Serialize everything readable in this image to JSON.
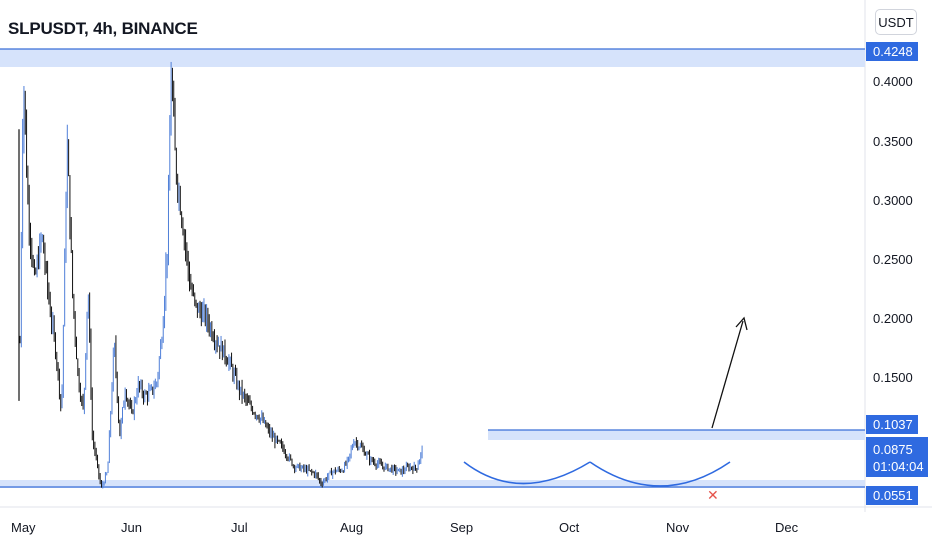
{
  "chart_data": {
    "type": "candlestick",
    "title": "SLPUSDT, 4h, BINANCE",
    "price_unit": "USDT",
    "x_ticks": [
      "May",
      "Jun",
      "Jul",
      "Aug",
      "Sep",
      "Oct",
      "Nov",
      "Dec"
    ],
    "y_ticks": [
      "0.4000",
      "0.3500",
      "0.3000",
      "0.2500",
      "0.2000",
      "0.1500"
    ],
    "ylim": [
      0.05,
      0.43
    ],
    "price_labels": {
      "top_level": "0.4248",
      "resistance": "0.1037",
      "current": "0.0875",
      "countdown": "01:04:04",
      "support": "0.0551"
    },
    "levels": {
      "top": 0.4248,
      "resistance": 0.1037,
      "support": 0.0551
    },
    "price_path": [
      [
        0.0,
        0.18
      ],
      [
        0.03,
        0.41
      ],
      [
        0.07,
        0.3
      ],
      [
        0.13,
        0.23
      ],
      [
        0.2,
        0.27
      ],
      [
        0.27,
        0.21
      ],
      [
        0.33,
        0.17
      ],
      [
        0.38,
        0.12
      ],
      [
        0.43,
        0.35
      ],
      [
        0.48,
        0.22
      ],
      [
        0.53,
        0.15
      ],
      [
        0.58,
        0.12
      ],
      [
        0.62,
        0.23
      ],
      [
        0.66,
        0.1
      ],
      [
        0.7,
        0.078
      ],
      [
        0.74,
        0.056
      ],
      [
        0.8,
        0.07
      ],
      [
        0.86,
        0.18
      ],
      [
        0.91,
        0.1
      ],
      [
        0.96,
        0.14
      ],
      [
        1.02,
        0.118
      ],
      [
        1.08,
        0.143
      ],
      [
        1.14,
        0.134
      ],
      [
        1.2,
        0.138
      ],
      [
        1.25,
        0.146
      ],
      [
        1.3,
        0.19
      ],
      [
        1.35,
        0.27
      ],
      [
        1.38,
        0.41
      ],
      [
        1.42,
        0.33
      ],
      [
        1.46,
        0.3
      ],
      [
        1.5,
        0.27
      ],
      [
        1.55,
        0.23
      ],
      [
        1.6,
        0.21
      ],
      [
        1.7,
        0.2
      ],
      [
        1.8,
        0.18
      ],
      [
        1.9,
        0.165
      ],
      [
        2.0,
        0.14
      ],
      [
        2.1,
        0.125
      ],
      [
        2.2,
        0.115
      ],
      [
        2.3,
        0.1
      ],
      [
        2.4,
        0.09
      ],
      [
        2.5,
        0.075
      ],
      [
        2.6,
        0.072
      ],
      [
        2.7,
        0.068
      ],
      [
        2.75,
        0.06
      ],
      [
        2.85,
        0.07
      ],
      [
        2.95,
        0.072
      ],
      [
        3.0,
        0.08
      ],
      [
        3.05,
        0.097
      ],
      [
        3.12,
        0.09
      ],
      [
        3.2,
        0.08
      ],
      [
        3.3,
        0.075
      ],
      [
        3.4,
        0.072
      ],
      [
        3.48,
        0.07
      ],
      [
        3.55,
        0.074
      ],
      [
        3.62,
        0.073
      ],
      [
        3.68,
        0.09
      ]
    ],
    "month_index_note": "x in months since May 1"
  }
}
